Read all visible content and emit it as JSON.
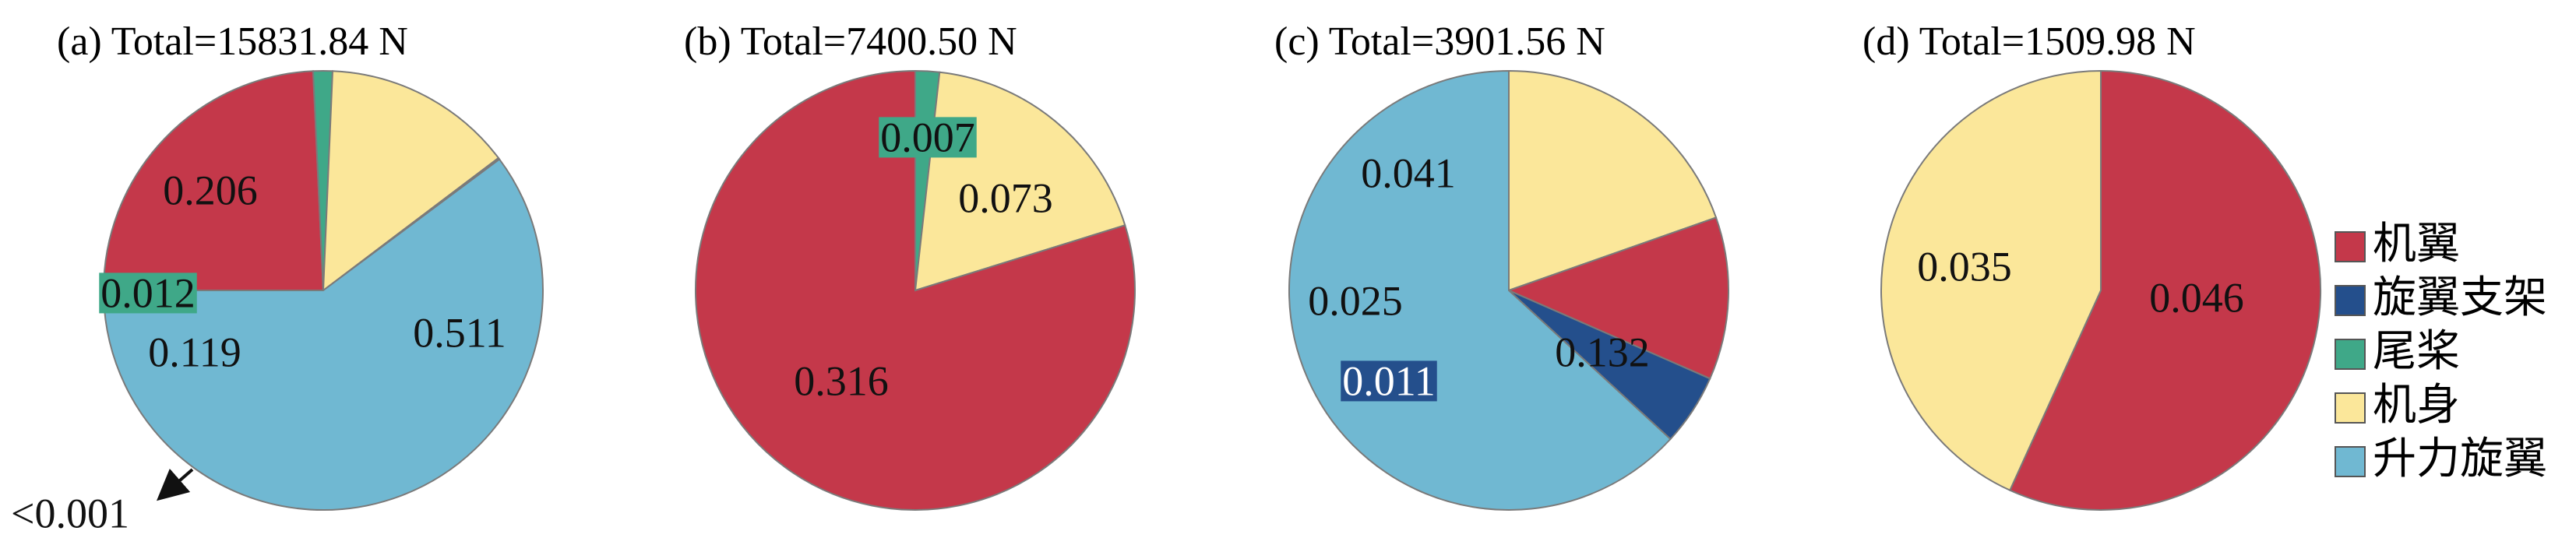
{
  "chart_data": {
    "type": "pie",
    "legend": {
      "placement": "right",
      "entries": [
        {
          "name": "机翼",
          "color": "#c4384a"
        },
        {
          "name": "旋翼支架",
          "color": "#244f8c"
        },
        {
          "name": "尾桨",
          "color": "#3fa888"
        },
        {
          "name": "机身",
          "color": "#fbe79a"
        },
        {
          "name": "升力旋翼",
          "color": "#70b8d2"
        }
      ]
    },
    "panels": [
      {
        "title": "(a)  Total=15831.84 N",
        "slices": [
          {
            "category": "机翼",
            "value": 0.206,
            "label": "0.206"
          },
          {
            "category": "尾桨",
            "value": 0.012,
            "label": "0.012"
          },
          {
            "category": "机身",
            "value": 0.119,
            "label": "0.119"
          },
          {
            "category": "旋翼支架",
            "value": 0.001,
            "label": "<0.001"
          },
          {
            "category": "升力旋翼",
            "value": 0.511,
            "label": "0.511"
          }
        ]
      },
      {
        "title": "(b)  Total=7400.50 N",
        "slices": [
          {
            "category": "尾桨",
            "value": 0.007,
            "label": "0.007"
          },
          {
            "category": "机身",
            "value": 0.073,
            "label": "0.073"
          },
          {
            "category": "机翼",
            "value": 0.316,
            "label": "0.316"
          }
        ]
      },
      {
        "title": "(c)  Total=3901.56 N",
        "slices": [
          {
            "category": "机身",
            "value": 0.041,
            "label": "0.041"
          },
          {
            "category": "机翼",
            "value": 0.025,
            "label": "0.025"
          },
          {
            "category": "旋翼支架",
            "value": 0.011,
            "label": "0.011"
          },
          {
            "category": "升力旋翼",
            "value": 0.132,
            "label": "0.132"
          }
        ]
      },
      {
        "title": "(d)  Total=1509.98 N",
        "slices": [
          {
            "category": "机翼",
            "value": 0.046,
            "label": "0.046"
          },
          {
            "category": "机身",
            "value": 0.035,
            "label": "0.035"
          }
        ]
      }
    ]
  }
}
